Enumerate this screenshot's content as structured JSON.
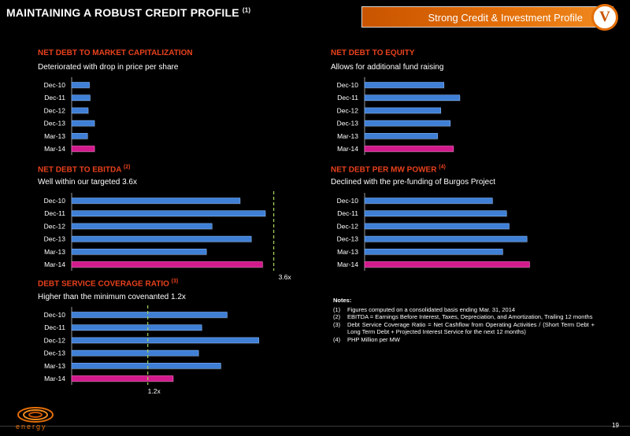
{
  "page": {
    "title": "MAINTAINING A ROBUST CREDIT PROFILE",
    "title_footnote": "(1)",
    "banner_text": "Strong Credit & Investment Profile",
    "section_badge": "V",
    "page_number": "19",
    "logo_text": "energy",
    "colors": {
      "bar": "#3f7fd6",
      "bar_highlight": "#d21a8c",
      "accent": "#e36e08",
      "panel_title": "#e8411c",
      "threshold": "#a6d65a"
    }
  },
  "notes": {
    "heading": "Notes:",
    "items": [
      {
        "num": "(1)",
        "text": "Figures computed on a consolidated basis ending Mar. 31, 2014"
      },
      {
        "num": "(2)",
        "text": "EBITDA = Earnings Before Interest, Taxes, Depreciation, and Amortization, Trailing 12 months"
      },
      {
        "num": "(3)",
        "text": "Debt Service Coverage Ratio = Net Cashflow from Operating Activities / (Short Term Debt + Long Term Debt + Projected Interest Service for the next 12 months)"
      },
      {
        "num": "(4)",
        "text": "PHP Million per MW"
      }
    ]
  },
  "chart_data": [
    {
      "type": "bar",
      "title": "NET DEBT TO MARKET CAPITALIZATION",
      "title_footnote": "",
      "subtitle": "Deteriorated with drop in price per share",
      "categories": [
        "Dec-10",
        "Dec-11",
        "Dec-12",
        "Dec-13",
        "Mar-13",
        "Mar-14"
      ],
      "values": [
        0.28,
        0.29,
        0.26,
        0.36,
        0.25,
        0.36
      ],
      "xlim": [
        0,
        3.6
      ],
      "highlight": "Mar-14"
    },
    {
      "type": "bar",
      "title": "NET DEBT TO EQUITY",
      "title_footnote": "",
      "subtitle": "Allows for additional fund raising",
      "categories": [
        "Dec-10",
        "Dec-11",
        "Dec-12",
        "Dec-13",
        "Mar-13",
        "Mar-14"
      ],
      "values": [
        1.25,
        1.5,
        1.2,
        1.35,
        1.15,
        1.4
      ],
      "xlim": [
        0,
        3.6
      ],
      "highlight": "Mar-14"
    },
    {
      "type": "bar",
      "title": "NET DEBT TO EBITDA",
      "title_footnote": "(2)",
      "subtitle": "Well within our targeted 3.6x",
      "categories": [
        "Dec-10",
        "Dec-11",
        "Dec-12",
        "Dec-13",
        "Mar-13",
        "Mar-14"
      ],
      "values": [
        3.0,
        3.45,
        2.5,
        3.2,
        2.4,
        3.4
      ],
      "xlim": [
        0,
        3.9
      ],
      "threshold": {
        "value": 3.6,
        "label": "3.6x"
      },
      "highlight": "Mar-14"
    },
    {
      "type": "bar",
      "title": "NET DEBT PER MW POWER",
      "title_footnote": "(4)",
      "subtitle": "Declined with the pre-funding of Burgos Project",
      "categories": [
        "Dec-10",
        "Dec-11",
        "Dec-12",
        "Dec-13",
        "Mar-13",
        "Mar-14"
      ],
      "values": [
        100,
        111,
        113,
        127,
        108,
        129
      ],
      "xlim": [
        0,
        170
      ],
      "highlight": "Mar-14"
    },
    {
      "type": "bar",
      "title": "DEBT SERVICE COVERAGE RATIO",
      "title_footnote": "(3)",
      "subtitle": "Higher than the minimum covenanted 1.2x",
      "categories": [
        "Dec-10",
        "Dec-11",
        "Dec-12",
        "Dec-13",
        "Mar-13",
        "Mar-14"
      ],
      "values": [
        2.45,
        2.05,
        2.95,
        2.0,
        2.35,
        1.6
      ],
      "xlim": [
        0,
        3.6
      ],
      "threshold": {
        "value": 1.2,
        "label": "1.2x"
      },
      "highlight": "Mar-14"
    }
  ]
}
